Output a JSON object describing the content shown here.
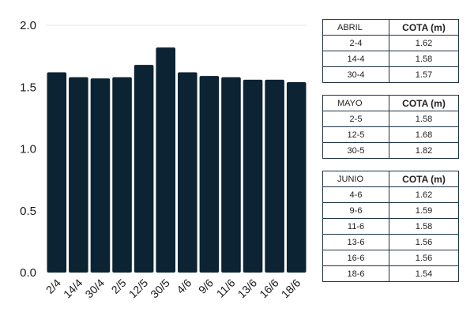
{
  "chart_data": {
    "type": "bar",
    "categories": [
      "2/4",
      "14/4",
      "30/4",
      "2/5",
      "12/5",
      "30/5",
      "4/6",
      "9/6",
      "11/6",
      "13/6",
      "16/6",
      "18/6"
    ],
    "values": [
      1.62,
      1.58,
      1.57,
      1.58,
      1.68,
      1.82,
      1.62,
      1.59,
      1.58,
      1.56,
      1.56,
      1.54
    ],
    "ylim": [
      0,
      2.0
    ],
    "yticks": [
      "0.0",
      "0.5",
      "1.0",
      "1.5",
      "2.0"
    ],
    "grid": false,
    "bar_color": "#0b2333"
  },
  "tables": [
    {
      "month": "ABRIL",
      "header": "COTA (m)",
      "rows": [
        {
          "date": "2-4",
          "value": "1.62"
        },
        {
          "date": "14-4",
          "value": "1.58"
        },
        {
          "date": "30-4",
          "value": "1.57"
        }
      ]
    },
    {
      "month": "MAYO",
      "header": "COTA (m)",
      "rows": [
        {
          "date": "2-5",
          "value": "1.58"
        },
        {
          "date": "12-5",
          "value": "1.68"
        },
        {
          "date": "30-5",
          "value": "1.82"
        }
      ]
    },
    {
      "month": "JUNIO",
      "header": "COTA (m)",
      "rows": [
        {
          "date": "4-6",
          "value": "1.62"
        },
        {
          "date": "9-6",
          "value": "1.59"
        },
        {
          "date": "11-6",
          "value": "1.58"
        },
        {
          "date": "13-6",
          "value": "1.56"
        },
        {
          "date": "16-6",
          "value": "1.56"
        },
        {
          "date": "18-6",
          "value": "1.54"
        }
      ]
    }
  ]
}
